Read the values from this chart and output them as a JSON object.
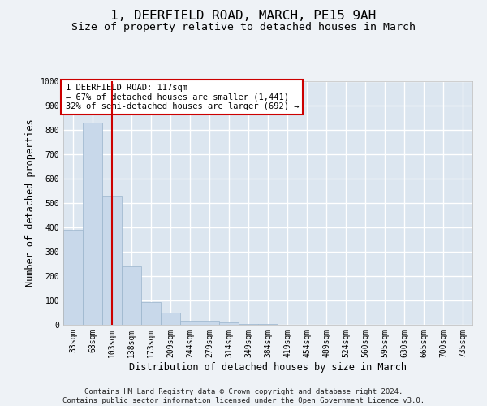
{
  "title": "1, DEERFIELD ROAD, MARCH, PE15 9AH",
  "subtitle": "Size of property relative to detached houses in March",
  "xlabel": "Distribution of detached houses by size in March",
  "ylabel": "Number of detached properties",
  "bin_labels": [
    "33sqm",
    "68sqm",
    "103sqm",
    "138sqm",
    "173sqm",
    "209sqm",
    "244sqm",
    "279sqm",
    "314sqm",
    "349sqm",
    "384sqm",
    "419sqm",
    "454sqm",
    "489sqm",
    "524sqm",
    "560sqm",
    "595sqm",
    "630sqm",
    "665sqm",
    "700sqm",
    "735sqm"
  ],
  "bar_heights": [
    390,
    830,
    530,
    240,
    93,
    50,
    18,
    18,
    10,
    5,
    5,
    0,
    0,
    0,
    0,
    0,
    0,
    0,
    0,
    0,
    0
  ],
  "bar_color": "#c8d8ea",
  "bar_edge_color": "#9ab4cc",
  "red_line_x": 2.0,
  "red_line_color": "#cc0000",
  "annotation_text": "1 DEERFIELD ROAD: 117sqm\n← 67% of detached houses are smaller (1,441)\n32% of semi-detached houses are larger (692) →",
  "annotation_box_facecolor": "#ffffff",
  "annotation_box_edgecolor": "#cc0000",
  "ylim": [
    0,
    1000
  ],
  "yticks": [
    0,
    100,
    200,
    300,
    400,
    500,
    600,
    700,
    800,
    900,
    1000
  ],
  "bg_color": "#eef2f6",
  "plot_bg_color": "#dce6f0",
  "grid_color": "#ffffff",
  "title_fontsize": 11.5,
  "subtitle_fontsize": 9.5,
  "axis_label_fontsize": 8.5,
  "tick_fontsize": 7,
  "footer_fontsize": 6.5,
  "footer_line1": "Contains HM Land Registry data © Crown copyright and database right 2024.",
  "footer_line2": "Contains public sector information licensed under the Open Government Licence v3.0."
}
